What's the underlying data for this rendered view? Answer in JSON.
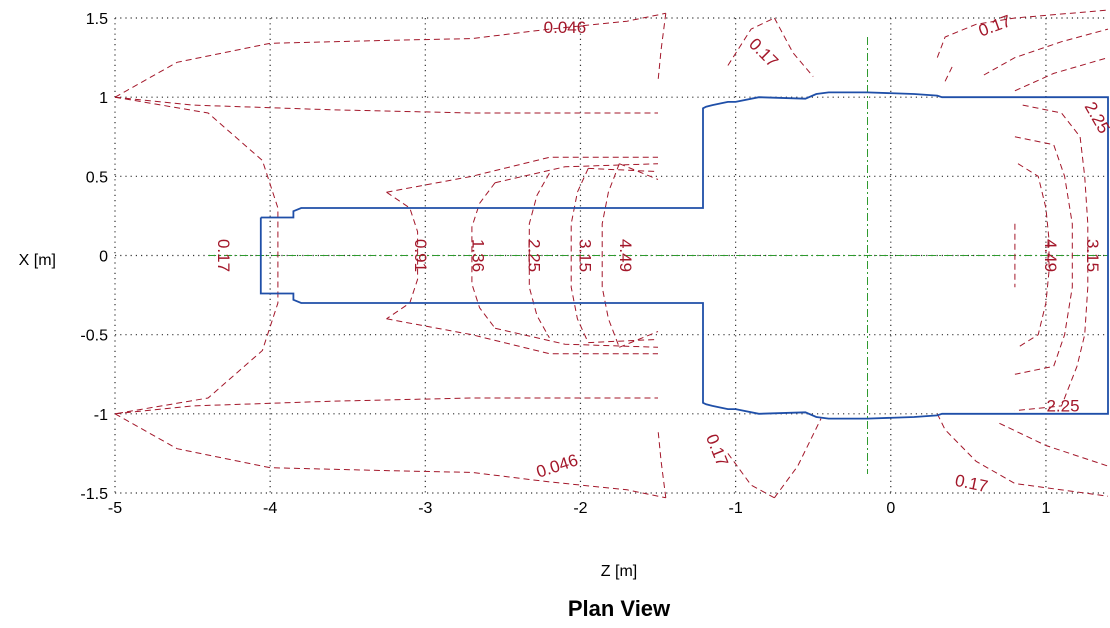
{
  "chart_data": {
    "type": "contour",
    "title": "Plan View",
    "xlabel": "Z [m]",
    "ylabel": "X [m]",
    "xlim": [
      -5,
      1.4
    ],
    "ylim": [
      -1.5,
      1.5
    ],
    "x_ticks": [
      "-5",
      "-4",
      "-3",
      "-2",
      "-1",
      "0",
      "1"
    ],
    "y_ticks": [
      "1.5",
      "1",
      "0.5",
      "0",
      "-0.5",
      "-1",
      "-1.5"
    ],
    "grid": true,
    "colors": {
      "contour": "#a3172a",
      "outline": "#1f4fa8",
      "centerline": "#2e9a2e"
    },
    "contour_labels": [
      {
        "text": "0.046",
        "x": -2.1,
        "y": 1.44,
        "rot": 0
      },
      {
        "text": "0.046",
        "x": -2.15,
        "y": -1.33,
        "rot": -18
      },
      {
        "text": "0.17",
        "x": -4.3,
        "y": 0.0,
        "rot": 90
      },
      {
        "text": "0.17",
        "x": -0.82,
        "y": 1.28,
        "rot": 45
      },
      {
        "text": "0.17",
        "x": -1.12,
        "y": -1.23,
        "rot": 68
      },
      {
        "text": "0.17",
        "x": 0.67,
        "y": 1.45,
        "rot": -20
      },
      {
        "text": "0.17",
        "x": 0.52,
        "y": -1.44,
        "rot": 12
      },
      {
        "text": "0.91",
        "x": -3.03,
        "y": 0.0,
        "rot": 90
      },
      {
        "text": "1.36",
        "x": -2.66,
        "y": 0.0,
        "rot": 90
      },
      {
        "text": "2.25",
        "x": -2.3,
        "y": 0.0,
        "rot": 90
      },
      {
        "text": "3.15",
        "x": -1.97,
        "y": 0.0,
        "rot": 90
      },
      {
        "text": "4.49",
        "x": -1.71,
        "y": 0.0,
        "rot": 90
      },
      {
        "text": "4.49",
        "x": 1.03,
        "y": 0.0,
        "rot": 90
      },
      {
        "text": "3.15",
        "x": 1.3,
        "y": 0.0,
        "rot": 90
      },
      {
        "text": "2.25",
        "x": 1.33,
        "y": 0.87,
        "rot": 60
      },
      {
        "text": "2.25",
        "x": 1.11,
        "y": -0.95,
        "rot": 0
      }
    ],
    "outline": [
      [
        -4.06,
        0.24
      ],
      [
        -3.85,
        0.24
      ],
      [
        -3.85,
        0.28
      ],
      [
        -3.8,
        0.3
      ],
      [
        -1.21,
        0.3
      ],
      [
        -1.21,
        0.93
      ],
      [
        -1.19,
        0.94
      ],
      [
        -1.15,
        0.95
      ],
      [
        -1.1,
        0.96
      ],
      [
        -1.05,
        0.97
      ],
      [
        -1.0,
        0.97
      ],
      [
        -0.85,
        1.0
      ],
      [
        -0.55,
        0.99
      ],
      [
        -0.48,
        1.02
      ],
      [
        -0.4,
        1.03
      ],
      [
        -0.15,
        1.03
      ],
      [
        0.15,
        1.02
      ],
      [
        0.3,
        1.01
      ],
      [
        0.33,
        1.0
      ],
      [
        1.4,
        1.0
      ],
      [
        1.4,
        -1.0
      ],
      [
        0.33,
        -1.0
      ],
      [
        0.3,
        -1.01
      ],
      [
        0.15,
        -1.02
      ],
      [
        -0.15,
        -1.03
      ],
      [
        -0.4,
        -1.03
      ],
      [
        -0.48,
        -1.02
      ],
      [
        -0.55,
        -0.99
      ],
      [
        -0.85,
        -1.0
      ],
      [
        -1.0,
        -0.97
      ],
      [
        -1.05,
        -0.97
      ],
      [
        -1.1,
        -0.96
      ],
      [
        -1.15,
        -0.95
      ],
      [
        -1.19,
        -0.94
      ],
      [
        -1.21,
        -0.93
      ],
      [
        -1.21,
        -0.3
      ],
      [
        -3.8,
        -0.3
      ],
      [
        -3.85,
        -0.28
      ],
      [
        -3.85,
        -0.24
      ],
      [
        -4.06,
        -0.24
      ],
      [
        -4.06,
        0.24
      ]
    ],
    "contours": [
      [
        [
          -5.0,
          1.0
        ],
        [
          -4.6,
          1.22
        ],
        [
          -4.0,
          1.34
        ],
        [
          -3.2,
          1.36
        ],
        [
          -2.7,
          1.37
        ],
        [
          -2.2,
          1.43
        ],
        [
          -1.7,
          1.48
        ],
        [
          -1.45,
          1.53
        ]
      ],
      [
        [
          -5.0,
          1.0
        ],
        [
          -4.4,
          0.9
        ],
        [
          -4.05,
          0.6
        ],
        [
          -3.95,
          0.3
        ],
        [
          -3.95,
          0.0
        ],
        [
          -3.95,
          -0.3
        ],
        [
          -4.05,
          -0.6
        ],
        [
          -4.4,
          -0.9
        ],
        [
          -5.0,
          -1.0
        ]
      ],
      [
        [
          -5.0,
          1.0
        ],
        [
          -4.5,
          0.95
        ],
        [
          -3.6,
          0.92
        ],
        [
          -2.7,
          0.9
        ],
        [
          -2.0,
          0.9
        ],
        [
          -1.5,
          0.9
        ]
      ],
      [
        [
          -5.0,
          -1.0
        ],
        [
          -4.5,
          -0.95
        ],
        [
          -3.6,
          -0.92
        ],
        [
          -2.7,
          -0.9
        ],
        [
          -2.0,
          -0.9
        ],
        [
          -1.5,
          -0.9
        ]
      ],
      [
        [
          -5.0,
          -1.0
        ],
        [
          -4.6,
          -1.22
        ],
        [
          -4.0,
          -1.34
        ],
        [
          -3.2,
          -1.36
        ],
        [
          -2.7,
          -1.37
        ],
        [
          -2.2,
          -1.43
        ],
        [
          -1.7,
          -1.48
        ],
        [
          -1.45,
          -1.53
        ]
      ],
      [
        [
          -1.45,
          1.53
        ],
        [
          -1.48,
          1.3
        ],
        [
          -1.5,
          1.1
        ]
      ],
      [
        [
          -1.45,
          -1.53
        ],
        [
          -1.48,
          -1.3
        ],
        [
          -1.5,
          -1.1
        ]
      ],
      [
        [
          -3.25,
          0.4
        ],
        [
          -3.1,
          0.3
        ],
        [
          -3.05,
          0.15
        ],
        [
          -3.05,
          -0.15
        ],
        [
          -3.1,
          -0.3
        ],
        [
          -3.25,
          -0.4
        ]
      ],
      [
        [
          -2.55,
          0.46
        ],
        [
          -2.65,
          0.33
        ],
        [
          -2.7,
          0.18
        ],
        [
          -2.7,
          -0.18
        ],
        [
          -2.65,
          -0.33
        ],
        [
          -2.55,
          -0.46
        ]
      ],
      [
        [
          -2.2,
          0.52
        ],
        [
          -2.28,
          0.38
        ],
        [
          -2.33,
          0.2
        ],
        [
          -2.33,
          -0.2
        ],
        [
          -2.28,
          -0.38
        ],
        [
          -2.2,
          -0.52
        ]
      ],
      [
        [
          -1.95,
          0.55
        ],
        [
          -2.02,
          0.4
        ],
        [
          -2.06,
          0.2
        ],
        [
          -2.06,
          -0.2
        ],
        [
          -2.02,
          -0.4
        ],
        [
          -1.95,
          -0.55
        ]
      ],
      [
        [
          -1.75,
          0.58
        ],
        [
          -1.82,
          0.4
        ],
        [
          -1.86,
          0.2
        ],
        [
          -1.86,
          -0.2
        ],
        [
          -1.82,
          -0.4
        ],
        [
          -1.75,
          -0.58
        ]
      ],
      [
        [
          -3.25,
          0.4
        ],
        [
          -2.7,
          0.5
        ],
        [
          -2.2,
          0.62
        ],
        [
          -1.5,
          0.62
        ]
      ],
      [
        [
          -3.25,
          -0.4
        ],
        [
          -2.7,
          -0.5
        ],
        [
          -2.2,
          -0.62
        ],
        [
          -1.5,
          -0.62
        ]
      ],
      [
        [
          -2.55,
          0.46
        ],
        [
          -2.1,
          0.56
        ],
        [
          -1.5,
          0.58
        ]
      ],
      [
        [
          -2.55,
          -0.46
        ],
        [
          -2.1,
          -0.56
        ],
        [
          -1.5,
          -0.58
        ]
      ],
      [
        [
          -1.95,
          0.55
        ],
        [
          -1.5,
          0.53
        ]
      ],
      [
        [
          -1.95,
          -0.55
        ],
        [
          -1.5,
          -0.53
        ]
      ],
      [
        [
          -1.75,
          0.58
        ],
        [
          -1.5,
          0.48
        ]
      ],
      [
        [
          -1.75,
          -0.58
        ],
        [
          -1.5,
          -0.48
        ]
      ],
      [
        [
          -1.05,
          1.2
        ],
        [
          -0.9,
          1.43
        ],
        [
          -0.75,
          1.5
        ]
      ],
      [
        [
          -0.75,
          1.5
        ],
        [
          -0.63,
          1.28
        ],
        [
          -0.5,
          1.13
        ]
      ],
      [
        [
          -1.05,
          -1.25
        ],
        [
          -0.9,
          -1.45
        ],
        [
          -0.75,
          -1.53
        ]
      ],
      [
        [
          -0.75,
          -1.53
        ],
        [
          -0.6,
          -1.33
        ],
        [
          -0.45,
          -1.03
        ]
      ],
      [
        [
          0.3,
          1.25
        ],
        [
          0.35,
          1.38
        ],
        [
          0.55,
          1.46
        ],
        [
          0.8,
          1.5
        ],
        [
          1.4,
          1.55
        ]
      ],
      [
        [
          0.35,
          1.1
        ],
        [
          0.4,
          1.2
        ]
      ],
      [
        [
          0.6,
          1.14
        ],
        [
          0.8,
          1.25
        ],
        [
          1.1,
          1.35
        ],
        [
          1.4,
          1.43
        ]
      ],
      [
        [
          0.8,
          1.04
        ],
        [
          1.05,
          1.15
        ],
        [
          1.4,
          1.25
        ]
      ],
      [
        [
          0.3,
          -1.0
        ],
        [
          0.35,
          -1.1
        ],
        [
          0.55,
          -1.3
        ],
        [
          0.8,
          -1.44
        ],
        [
          1.4,
          -1.52
        ]
      ],
      [
        [
          0.7,
          -1.06
        ],
        [
          1.0,
          -1.2
        ],
        [
          1.4,
          -1.33
        ]
      ],
      [
        [
          0.85,
          0.95
        ],
        [
          1.1,
          0.9
        ],
        [
          1.22,
          0.75
        ],
        [
          1.25,
          0.5
        ],
        [
          1.27,
          0.2
        ],
        [
          1.27,
          -0.2
        ],
        [
          1.25,
          -0.5
        ],
        [
          1.2,
          -0.7
        ],
        [
          1.1,
          -0.95
        ],
        [
          0.8,
          -0.98
        ]
      ],
      [
        [
          0.82,
          0.58
        ],
        [
          0.95,
          0.5
        ],
        [
          1.0,
          0.3
        ],
        [
          1.02,
          0.1
        ],
        [
          1.02,
          -0.1
        ],
        [
          1.0,
          -0.3
        ],
        [
          0.95,
          -0.5
        ],
        [
          0.82,
          -0.58
        ]
      ],
      [
        [
          0.8,
          0.75
        ],
        [
          1.05,
          0.7
        ],
        [
          1.12,
          0.5
        ],
        [
          1.17,
          0.2
        ],
        [
          1.17,
          -0.2
        ],
        [
          1.12,
          -0.5
        ],
        [
          1.05,
          -0.7
        ],
        [
          0.8,
          -0.75
        ]
      ],
      [
        [
          0.8,
          0.2
        ],
        [
          0.8,
          -0.2
        ]
      ]
    ]
  }
}
